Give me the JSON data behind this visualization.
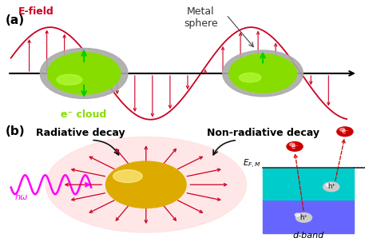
{
  "bg_color": "#ffffff",
  "panel_a_label": "(a)",
  "panel_b_label": "(b)",
  "efield_label": "E-field",
  "metal_sphere_label": "Metal\nsphere",
  "ecloud_label": "e⁻ cloud",
  "radiative_label": "Radiative decay",
  "nonradiative_label": "Non-radiative decay",
  "hw_label": "hω",
  "efm_label": "$E_{F,M}$",
  "dband_label": "d-band",
  "sphere1_color": "#88dd00",
  "sphere1_shell_color": "#aaaaaa",
  "sphere2_color": "#88dd00",
  "sphere2_shell_color": "#aaaaaa",
  "gold_sphere_color": "#ddaa00",
  "wave_color": "#cc0022",
  "arrow_color": "#cc0022",
  "efield_color": "#cc0022",
  "photon_color": "#ff00ff",
  "ecloud_arrow_color": "#00cc00",
  "band_blue_color": "#6666ff",
  "band_cyan_color": "#00cccc",
  "electron_color": "#cc0000",
  "efm_line_color": "#333333",
  "decay_arrow_color": "#111111",
  "glow_color": "#ffaaaa"
}
